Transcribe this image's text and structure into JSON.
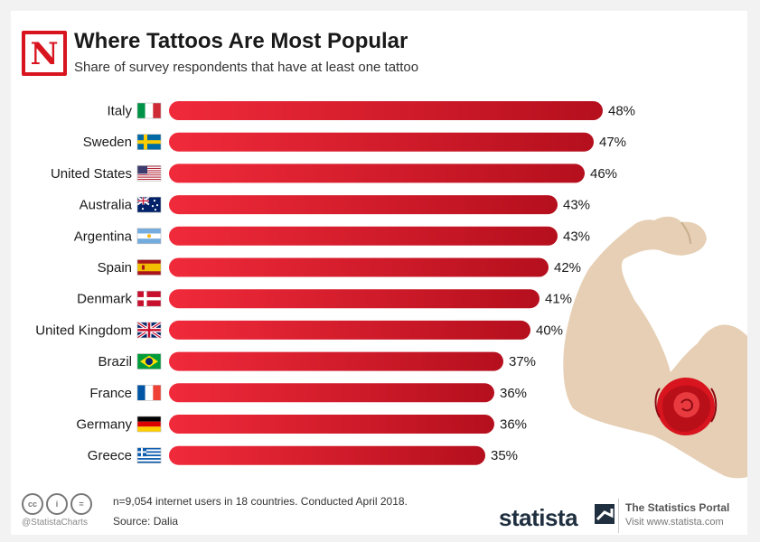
{
  "header": {
    "logo_letter": "N",
    "title": "Where Tattoos Are Most Popular",
    "subtitle": "Share of survey respondents that have at least one tattoo"
  },
  "chart_data": {
    "type": "bar",
    "orientation": "horizontal",
    "title": "Where Tattoos Are Most Popular",
    "subtitle": "Share of survey respondents that have at least one tattoo",
    "categories": [
      "Italy",
      "Sweden",
      "United States",
      "Australia",
      "Argentina",
      "Spain",
      "Denmark",
      "United Kingdom",
      "Brazil",
      "France",
      "Germany",
      "Greece"
    ],
    "values": [
      48,
      47,
      46,
      43,
      43,
      42,
      41,
      40,
      37,
      36,
      36,
      35
    ],
    "value_labels": [
      "48%",
      "47%",
      "46%",
      "43%",
      "43%",
      "42%",
      "41%",
      "40%",
      "37%",
      "36%",
      "36%",
      "35%"
    ],
    "unit": "%",
    "flags": [
      "italy-flag-icon",
      "sweden-flag-icon",
      "usa-flag-icon",
      "australia-flag-icon",
      "argentina-flag-icon",
      "spain-flag-icon",
      "denmark-flag-icon",
      "uk-flag-icon",
      "brazil-flag-icon",
      "france-flag-icon",
      "germany-flag-icon",
      "greece-flag-icon"
    ],
    "bar_color": "#d8162a",
    "xlim": [
      0,
      48
    ],
    "grid": false,
    "legend": "none"
  },
  "illustration": {
    "name": "flexed-arm-with-rose-tattoo",
    "skin_color": "#e6cfb4",
    "rose_color": "#d8141f"
  },
  "footer": {
    "cc_icons": [
      "cc",
      "by",
      "nd"
    ],
    "handle": "@StatistaCharts",
    "note": "n=9,054 internet users in 18 countries. Conducted April 2018.",
    "source": "Source: Dalia",
    "brand": "statista",
    "portal_name": "The Statistics Portal",
    "portal_url": "Visit www.statista.com"
  },
  "colors": {
    "accent": "#d8141f",
    "bar": "#d8162a",
    "text": "#1a1a1a",
    "brand_dark": "#1f2f3f"
  }
}
